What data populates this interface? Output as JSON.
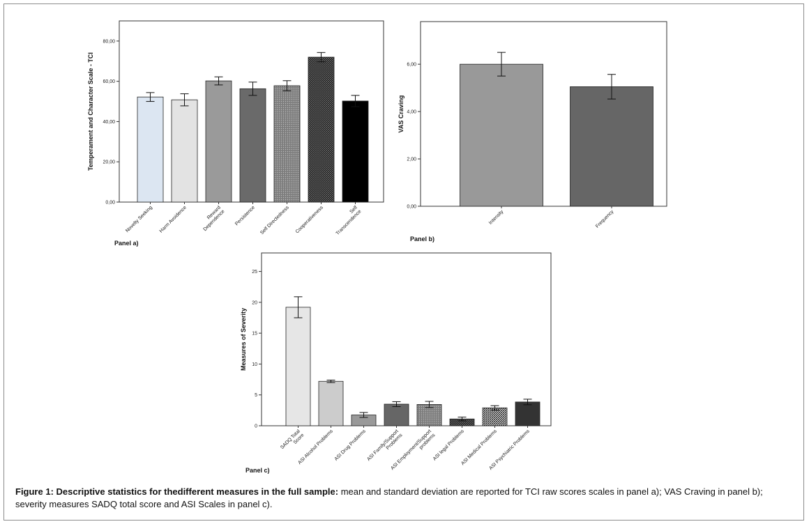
{
  "caption": {
    "bold": "Figure 1: Descriptive statistics for thedifferent measures in the full sample:",
    "text": " mean and standard deviation are reported for TCI raw scores scales in panel a); VAS Craving in panel b); severity measures SADQ total score and ASI Scales in panel c)."
  },
  "chart_data": [
    {
      "type": "bar",
      "panel_label": "Panel a)",
      "ylabel": "Temperament and Character Scale - TCI",
      "ylim": [
        0,
        90
      ],
      "yticks": [
        0,
        20,
        40,
        60,
        80
      ],
      "ytick_labels": [
        "0,00",
        "20,00",
        "40,00",
        "60,00",
        "80,00"
      ],
      "categories": [
        [
          "Novelty Seeking"
        ],
        [
          "Harm Avoidence"
        ],
        [
          "Reward",
          "Dependence"
        ],
        [
          "Persistence"
        ],
        [
          "Self Directedness"
        ],
        [
          "Cooperativeness"
        ],
        [
          "Self",
          "Transcendence"
        ]
      ],
      "values": [
        52.2,
        50.8,
        60.2,
        56.3,
        57.8,
        72.0,
        50.2
      ],
      "errors": [
        2.2,
        3.0,
        2.0,
        3.3,
        2.5,
        2.3,
        2.8
      ],
      "colors": [
        "#dce6f2",
        "#e3e3e3",
        "#9a9a9a",
        "#6a6a6a",
        "#8c8c8c",
        "#262626",
        "#000000"
      ],
      "patterns": [
        "",
        "",
        "",
        "",
        "dots",
        "crosshatch",
        ""
      ]
    },
    {
      "type": "bar",
      "panel_label": "Panel b)",
      "ylabel": "VAS Craving",
      "ylim": [
        0,
        7.8
      ],
      "yticks": [
        0,
        2,
        4,
        6
      ],
      "ytick_labels": [
        "0,00",
        "2,00",
        "4,00",
        "6,00"
      ],
      "categories": [
        [
          "Intensity"
        ],
        [
          "Frequency"
        ]
      ],
      "values": [
        6.0,
        5.05
      ],
      "errors": [
        0.5,
        0.52
      ],
      "colors": [
        "#999999",
        "#666666"
      ],
      "patterns": [
        "",
        ""
      ]
    },
    {
      "type": "bar",
      "panel_label": "Panel c)",
      "ylabel": "Measures of Severity",
      "ylim": [
        0,
        28
      ],
      "yticks": [
        0,
        5,
        10,
        15,
        20,
        25
      ],
      "ytick_labels": [
        "0",
        "5",
        "10",
        "15",
        "20",
        "25"
      ],
      "categories": [
        [
          "SADQ Total",
          "Score"
        ],
        [
          "ASI Alcohol Problems"
        ],
        [
          "ASI Drug Problems"
        ],
        [
          "ASI Family/Support",
          "Problems"
        ],
        [
          "ASI Employment/Support",
          "problems"
        ],
        [
          "ASI legal Problems"
        ],
        [
          "ASI Medical Problems"
        ],
        [
          "ASI Psychiatric Problems"
        ]
      ],
      "values": [
        19.2,
        7.2,
        1.75,
        3.5,
        3.45,
        1.1,
        2.9,
        3.85
      ],
      "errors": [
        1.7,
        0.2,
        0.4,
        0.4,
        0.5,
        0.3,
        0.35,
        0.45
      ],
      "colors": [
        "#e6e6e6",
        "#cccccc",
        "#999999",
        "#666666",
        "#e0e0e0",
        "#222222",
        "#3c3c3c",
        "#333333"
      ],
      "patterns": [
        "",
        "",
        "",
        "",
        "dots",
        "crosshatch",
        "diag",
        ""
      ]
    }
  ]
}
